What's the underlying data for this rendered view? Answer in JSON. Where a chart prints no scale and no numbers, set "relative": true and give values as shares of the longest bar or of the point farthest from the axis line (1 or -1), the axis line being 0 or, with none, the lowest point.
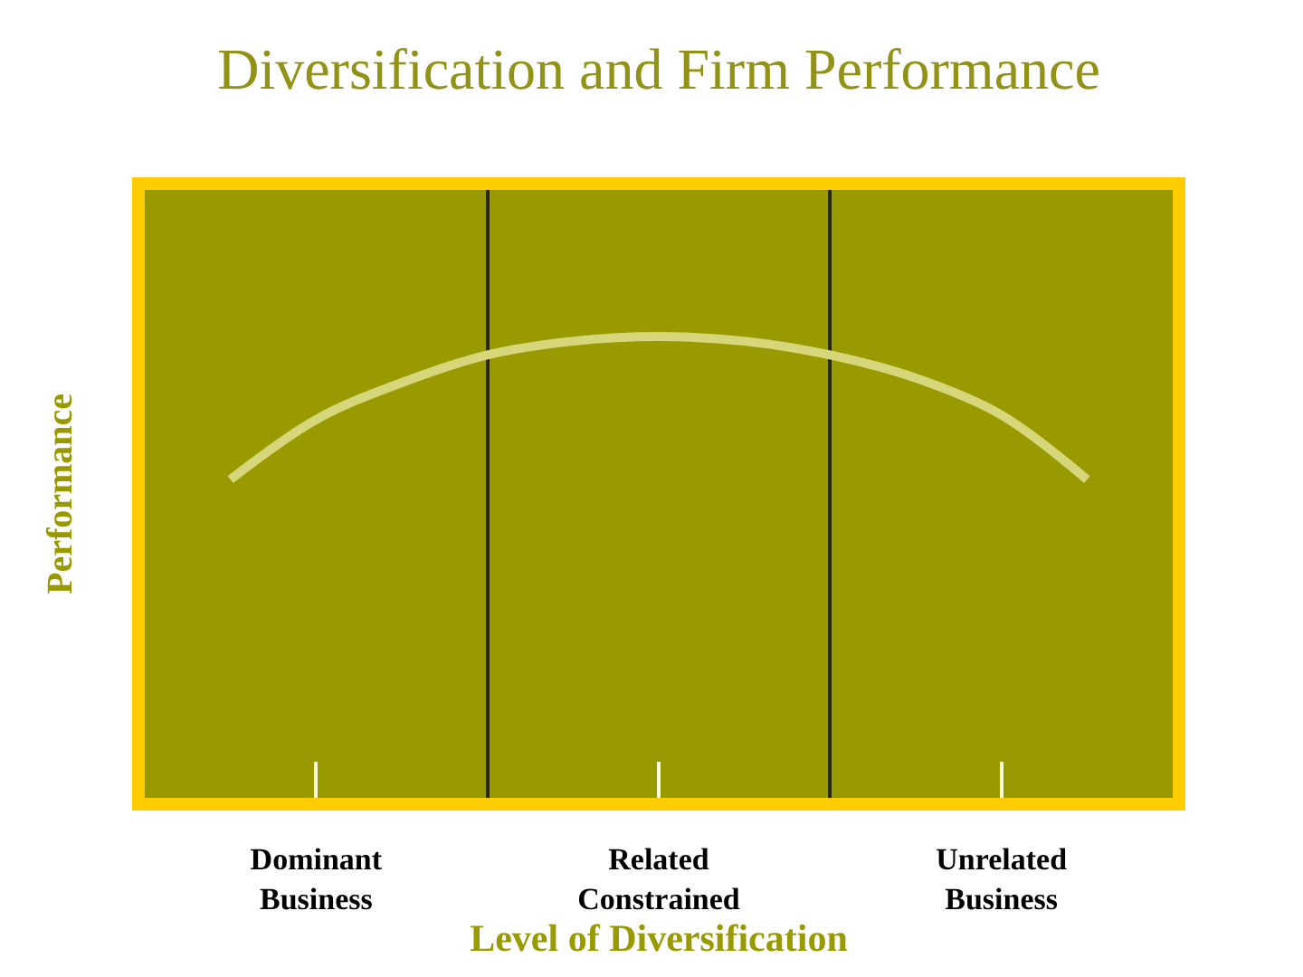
{
  "chart_data": {
    "type": "line",
    "title": "Diversification and Firm Performance",
    "xlabel": "Level of Diversification",
    "ylabel": "Performance",
    "relative": true,
    "categories": [
      null,
      "Dominant\nBusiness",
      null,
      null,
      null,
      "Related\nConstrained",
      null,
      null,
      null,
      "Unrelated\nBusiness",
      null
    ],
    "series": [
      {
        "color": "#d6d67a",
        "values": [
          0.69,
          0.82,
          0.9,
          0.96,
          0.99,
          1.0,
          0.99,
          0.96,
          0.91,
          0.83,
          0.69
        ]
      }
    ],
    "grid": "x"
  }
}
